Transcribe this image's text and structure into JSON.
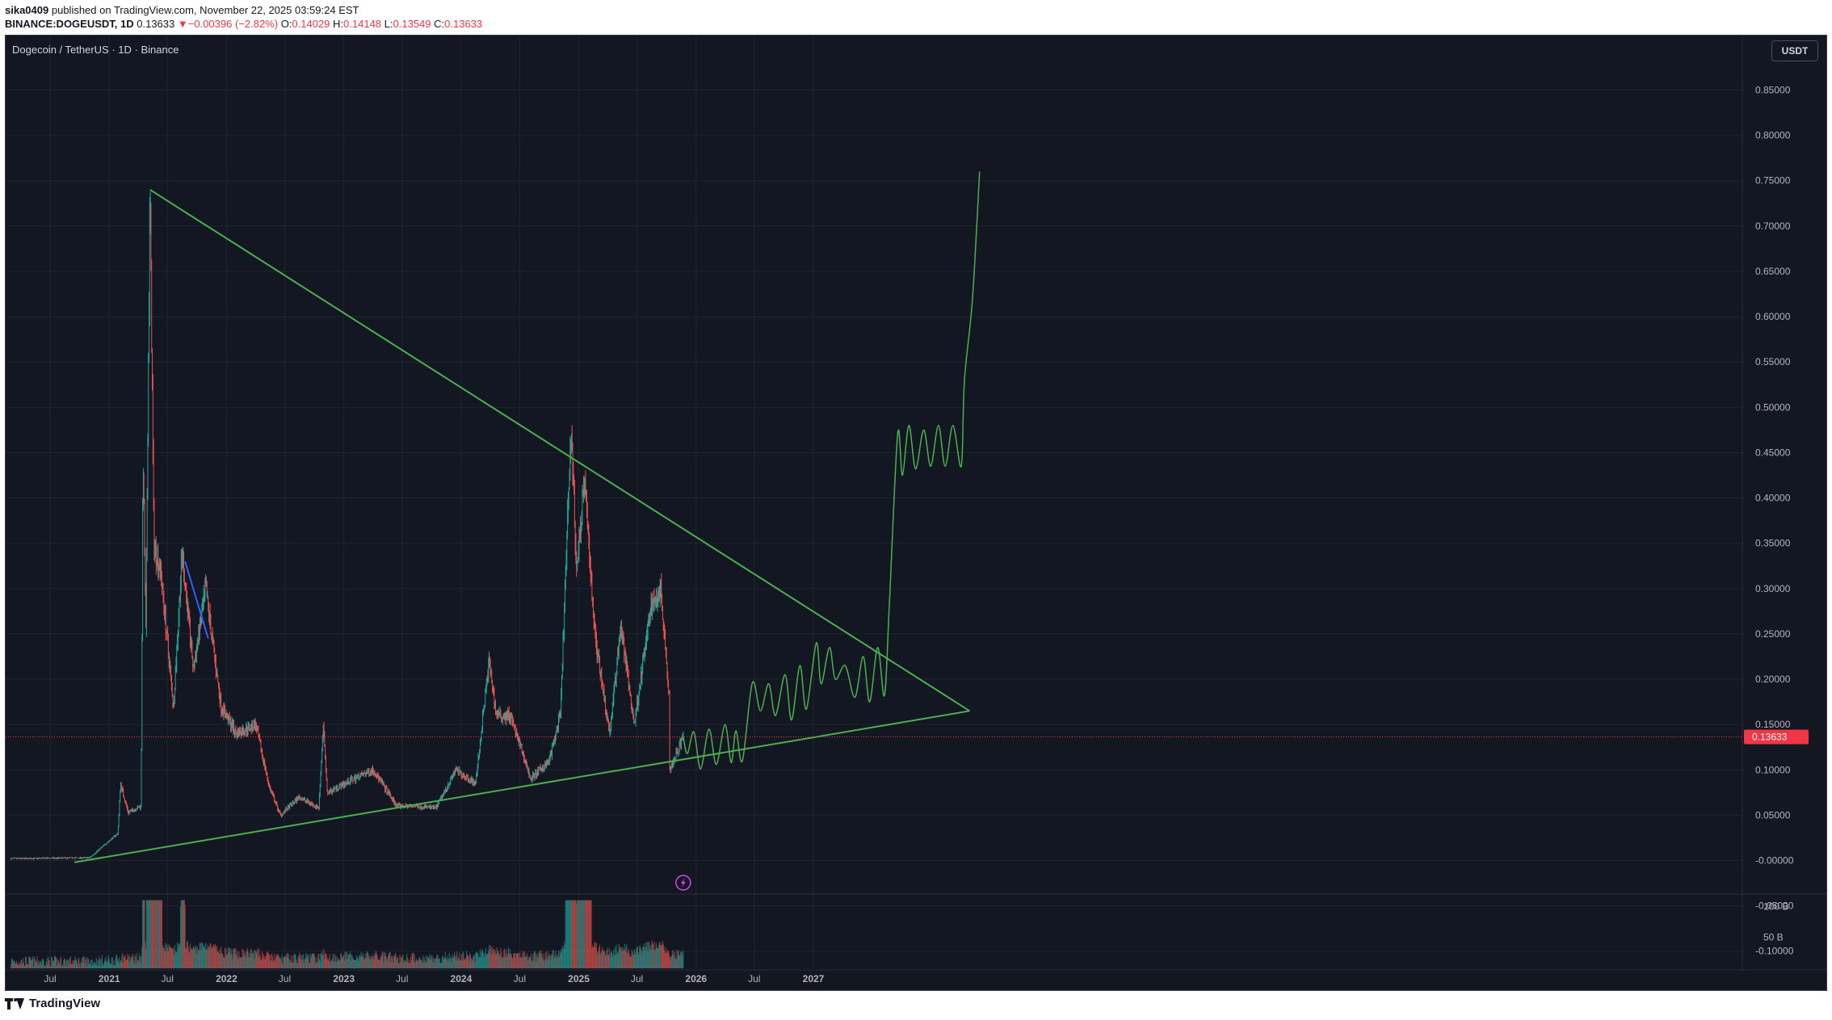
{
  "header": {
    "author": "sika0409",
    "published": "published on TradingView.com, November 22, 2025 03:59:24 EST",
    "symbol": "BINANCE:DOGEUSDT, 1D",
    "last": "0.13633",
    "change_arrow": "▼",
    "change": "−0.00396 (−2.82%)",
    "o_label": "O:",
    "o": "0.14029",
    "h_label": "H:",
    "h": "0.14148",
    "l_label": "L:",
    "l": "0.13549",
    "c_label": "C:",
    "c": "0.13633"
  },
  "legend_title": "Dogecoin / TetherUS · 1D · Binance",
  "currency": "USDT",
  "footer": {
    "brand": "TradingView"
  },
  "colors": {
    "background": "#131722",
    "up": "#26a69a",
    "down": "#ef5350",
    "trendline": "#4caf50",
    "projection": "#4caf50",
    "price_line": "#f23645",
    "blue_line": "#2962ff"
  },
  "chart_data": {
    "type": "candlestick",
    "x_ticks": [
      "Jul",
      "2021",
      "Jul",
      "2022",
      "Jul",
      "2023",
      "Jul",
      "2024",
      "Jul",
      "2025",
      "Jul",
      "2026",
      "Jul",
      "2027"
    ],
    "x_tick_dates": [
      "2020-07-01",
      "2021-01-01",
      "2021-07-01",
      "2022-01-01",
      "2022-07-01",
      "2023-01-01",
      "2023-07-01",
      "2024-01-01",
      "2024-07-01",
      "2025-01-01",
      "2025-07-01",
      "2026-01-01",
      "2026-07-01",
      "2027-01-01"
    ],
    "y_ticks": [
      "0.85000",
      "0.80000",
      "0.75000",
      "0.70000",
      "0.65000",
      "0.60000",
      "0.55000",
      "0.50000",
      "0.45000",
      "0.40000",
      "0.35000",
      "0.30000",
      "0.25000",
      "0.20000",
      "0.15000",
      "0.10000",
      "0.05000",
      "-0.00000",
      "-0.05000",
      "-0.10000"
    ],
    "y_tick_values": [
      0.85,
      0.8,
      0.75,
      0.7,
      0.65,
      0.6,
      0.55,
      0.5,
      0.45,
      0.4,
      0.35,
      0.3,
      0.25,
      0.2,
      0.15,
      0.1,
      0.05,
      0.0,
      -0.05,
      -0.1
    ],
    "ylim": [
      -0.115,
      0.9
    ],
    "volume_ticks": [
      "100 B",
      "50 B"
    ],
    "volume_tick_values": [
      100,
      50
    ],
    "volume_ylim": [
      0,
      120
    ],
    "current_price": 0.13633,
    "current_price_label": "0.13633",
    "price_path": [
      [
        "2020-03-01",
        0.002
      ],
      [
        "2020-11-01",
        0.003
      ],
      [
        "2021-01-28",
        0.03
      ],
      [
        "2021-02-05",
        0.085
      ],
      [
        "2021-03-01",
        0.053
      ],
      [
        "2021-04-10",
        0.06
      ],
      [
        "2021-04-16",
        0.45
      ],
      [
        "2021-04-25",
        0.25
      ],
      [
        "2021-05-08",
        0.74
      ],
      [
        "2021-05-20",
        0.35
      ],
      [
        "2021-06-10",
        0.32
      ],
      [
        "2021-07-20",
        0.17
      ],
      [
        "2021-08-16",
        0.34
      ],
      [
        "2021-09-20",
        0.21
      ],
      [
        "2021-10-28",
        0.3
      ],
      [
        "2021-12-15",
        0.17
      ],
      [
        "2022-02-01",
        0.14
      ],
      [
        "2022-04-01",
        0.15
      ],
      [
        "2022-05-15",
        0.08
      ],
      [
        "2022-06-18",
        0.05
      ],
      [
        "2022-08-15",
        0.07
      ],
      [
        "2022-10-15",
        0.058
      ],
      [
        "2022-10-29",
        0.15
      ],
      [
        "2022-11-10",
        0.075
      ],
      [
        "2023-02-01",
        0.09
      ],
      [
        "2023-04-02",
        0.1
      ],
      [
        "2023-06-15",
        0.06
      ],
      [
        "2023-08-15",
        0.06
      ],
      [
        "2023-10-15",
        0.058
      ],
      [
        "2023-12-15",
        0.1
      ],
      [
        "2024-02-15",
        0.085
      ],
      [
        "2024-03-28",
        0.22
      ],
      [
        "2024-04-20",
        0.16
      ],
      [
        "2024-06-01",
        0.16
      ],
      [
        "2024-08-05",
        0.09
      ],
      [
        "2024-10-01",
        0.11
      ],
      [
        "2024-11-05",
        0.16
      ],
      [
        "2024-12-08",
        0.48
      ],
      [
        "2024-12-25",
        0.32
      ],
      [
        "2025-01-18",
        0.42
      ],
      [
        "2025-02-20",
        0.25
      ],
      [
        "2025-04-07",
        0.14
      ],
      [
        "2025-05-12",
        0.26
      ],
      [
        "2025-06-22",
        0.15
      ],
      [
        "2025-08-14",
        0.28
      ],
      [
        "2025-09-13",
        0.3
      ],
      [
        "2025-10-10",
        0.18
      ],
      [
        "2025-10-11",
        0.1
      ],
      [
        "2025-11-22",
        0.13633
      ]
    ],
    "projection_path": [
      [
        "2025-11-22",
        0.13633
      ],
      [
        "2025-12-05",
        0.118
      ],
      [
        "2025-12-25",
        0.142
      ],
      [
        "2026-01-15",
        0.101
      ],
      [
        "2026-02-10",
        0.145
      ],
      [
        "2026-03-05",
        0.106
      ],
      [
        "2026-04-01",
        0.15
      ],
      [
        "2026-04-20",
        0.108
      ],
      [
        "2026-05-05",
        0.143
      ],
      [
        "2026-05-25",
        0.11
      ],
      [
        "2026-06-25",
        0.196
      ],
      [
        "2026-07-20",
        0.165
      ],
      [
        "2026-08-15",
        0.195
      ],
      [
        "2026-09-05",
        0.16
      ],
      [
        "2026-10-05",
        0.205
      ],
      [
        "2026-10-25",
        0.155
      ],
      [
        "2026-11-20",
        0.215
      ],
      [
        "2026-12-10",
        0.167
      ],
      [
        "2027-01-10",
        0.24
      ],
      [
        "2027-01-25",
        0.195
      ],
      [
        "2027-02-20",
        0.235
      ],
      [
        "2027-03-10",
        0.2
      ],
      [
        "2027-04-10",
        0.215
      ],
      [
        "2027-05-10",
        0.18
      ],
      [
        "2027-06-05",
        0.225
      ],
      [
        "2027-06-25",
        0.175
      ],
      [
        "2027-07-20",
        0.235
      ],
      [
        "2027-08-10",
        0.182
      ],
      [
        "2027-08-25",
        0.28
      ],
      [
        "2027-09-20",
        0.47
      ],
      [
        "2027-10-05",
        0.425
      ],
      [
        "2027-10-25",
        0.48
      ],
      [
        "2027-11-15",
        0.432
      ],
      [
        "2027-12-10",
        0.475
      ],
      [
        "2028-01-01",
        0.435
      ],
      [
        "2028-01-25",
        0.48
      ],
      [
        "2028-02-15",
        0.435
      ],
      [
        "2028-03-10",
        0.48
      ],
      [
        "2028-04-05",
        0.435
      ],
      [
        "2028-04-15",
        0.53
      ],
      [
        "2028-05-10",
        0.62
      ],
      [
        "2028-06-01",
        0.76
      ]
    ],
    "trendlines": [
      {
        "from": [
          "2021-05-08",
          0.74
        ],
        "to": [
          "2028-05-01",
          0.165
        ],
        "color": "#4caf50"
      },
      {
        "from": [
          "2020-09-15",
          -0.002
        ],
        "to": [
          "2028-05-01",
          0.165
        ],
        "color": "#4caf50"
      },
      {
        "from": [
          "2021-08-25",
          0.33
        ],
        "to": [
          "2021-11-05",
          0.245
        ],
        "color": "#2962ff"
      }
    ]
  }
}
